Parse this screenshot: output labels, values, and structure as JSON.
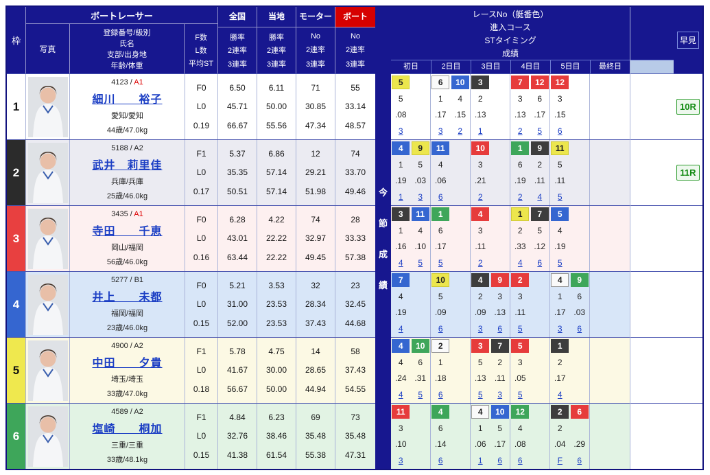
{
  "row_tints": [
    "#ffffff",
    "#ebebf2",
    "#fdf0f0",
    "#d8e6f8",
    "#fcf9e4",
    "#e2f3e4"
  ],
  "waku_styles": [
    {
      "bg": "#ffffff",
      "fg": "#111111"
    },
    {
      "bg": "#2b2b2b",
      "fg": "#ffffff"
    },
    {
      "bg": "#e84040",
      "fg": "#ffffff"
    },
    {
      "bg": "#3566d0",
      "fg": "#ffffff"
    },
    {
      "bg": "#efe84e",
      "fg": "#111111"
    },
    {
      "bg": "#3ea65a",
      "fg": "#ffffff"
    }
  ],
  "chip_styles": {
    "1": {
      "bg": "#fafafa",
      "fg": "#222222",
      "bd": "#999999"
    },
    "2": {
      "bg": "#3d3d3d",
      "fg": "#ffffff",
      "bd": "#3d3d3d"
    },
    "3": {
      "bg": "#e63c3c",
      "fg": "#ffffff",
      "bd": "#e63c3c"
    },
    "4": {
      "bg": "#3566d0",
      "fg": "#ffffff",
      "bd": "#3566d0"
    },
    "5": {
      "bg": "#ece64d",
      "fg": "#222222",
      "bd": "#d0ca38"
    },
    "6": {
      "bg": "#3ea65a",
      "fg": "#ffffff",
      "bd": "#3ea65a"
    }
  },
  "header": {
    "waku": "枠",
    "boat_racer": "ボートレーサー",
    "photo": "写真",
    "profile_lines": [
      "登録番号/級別",
      "氏名",
      "支部/出身地",
      "年齢/体重"
    ],
    "fl_lines": [
      "F数",
      "L数",
      "平均ST"
    ],
    "stat_cols": [
      {
        "label": "全国",
        "subs": [
          "勝率",
          "2連率",
          "3連率"
        ]
      },
      {
        "label": "当地",
        "subs": [
          "勝率",
          "2連率",
          "3連率"
        ]
      },
      {
        "label": "モーター",
        "subs": [
          "No",
          "2連率",
          "3連率"
        ]
      },
      {
        "label": "ボート",
        "subs": [
          "No",
          "2連率",
          "3連率"
        ]
      }
    ],
    "konsetsu": [
      "今",
      "節",
      "成",
      "績"
    ],
    "right_title": [
      "レースNo（艇番色）",
      "進入コース",
      "STタイミング",
      "成績"
    ],
    "days": [
      "初日",
      "2日目",
      "3日目",
      "4日目",
      "5日目",
      "最終日"
    ],
    "hayami": "早見"
  },
  "racers": [
    {
      "waku": "1",
      "reg": "4123",
      "grade": "A1",
      "grade_color": "#dd0000",
      "name": "細川　　裕子",
      "branch": "愛知/愛知",
      "age_weight": "44歳/47.0kg",
      "f": "F0",
      "l": "L0",
      "avg_st": "0.19",
      "zenkoku": [
        "6.50",
        "45.71",
        "66.67"
      ],
      "touchi": [
        "6.11",
        "50.00",
        "55.56"
      ],
      "motor": [
        "71",
        "30.85",
        "47.34"
      ],
      "boat": [
        "55",
        "33.14",
        "48.57"
      ],
      "hayami": "10R",
      "days": [
        [
          {
            "race": "5",
            "boat": 5,
            "course": "5",
            "st": ".08",
            "fin": "3"
          }
        ],
        [
          {
            "race": "6",
            "boat": 1,
            "course": "1",
            "st": ".17",
            "fin": "3"
          },
          {
            "race": "10",
            "boat": 4,
            "course": "4",
            "st": ".15",
            "fin": "2"
          }
        ],
        [
          {
            "race": "3",
            "boat": 2,
            "course": "2",
            "st": ".13",
            "fin": "1"
          }
        ],
        [
          {
            "race": "7",
            "boat": 3,
            "course": "3",
            "st": ".13",
            "fin": "2"
          },
          {
            "race": "12",
            "boat": 3,
            "course": "6",
            "st": ".17",
            "fin": "5"
          }
        ],
        [
          {
            "race": "12",
            "boat": 3,
            "course": "3",
            "st": ".15",
            "fin": "6"
          }
        ],
        []
      ]
    },
    {
      "waku": "2",
      "reg": "5188",
      "grade": "A2",
      "grade_color": "#222222",
      "name": "武井　莉里佳",
      "branch": "兵庫/兵庫",
      "age_weight": "25歳/46.0kg",
      "f": "F1",
      "l": "L0",
      "avg_st": "0.17",
      "zenkoku": [
        "5.37",
        "35.35",
        "50.51"
      ],
      "touchi": [
        "6.86",
        "57.14",
        "57.14"
      ],
      "motor": [
        "12",
        "29.21",
        "51.98"
      ],
      "boat": [
        "74",
        "33.70",
        "49.46"
      ],
      "hayami": "11R",
      "days": [
        [
          {
            "race": "4",
            "boat": 4,
            "course": "1",
            "st": ".19",
            "fin": "1"
          },
          {
            "race": "9",
            "boat": 5,
            "course": "5",
            "st": ".03",
            "fin": "3"
          }
        ],
        [
          {
            "race": "11",
            "boat": 4,
            "course": "4",
            "st": ".06",
            "fin": "6"
          }
        ],
        [
          {
            "race": "10",
            "boat": 3,
            "course": "3",
            "st": ".21",
            "fin": "2"
          }
        ],
        [
          {
            "race": "1",
            "boat": 6,
            "course": "6",
            "st": ".19",
            "fin": "2"
          },
          {
            "race": "9",
            "boat": 2,
            "course": "2",
            "st": ".11",
            "fin": "4"
          }
        ],
        [
          {
            "race": "11",
            "boat": 5,
            "course": "5",
            "st": ".11",
            "fin": "5"
          }
        ],
        []
      ]
    },
    {
      "waku": "3",
      "reg": "3435",
      "grade": "A1",
      "grade_color": "#dd0000",
      "name": "寺田　　千恵",
      "branch": "岡山/福岡",
      "age_weight": "56歳/46.0kg",
      "f": "F0",
      "l": "L0",
      "avg_st": "0.16",
      "zenkoku": [
        "6.28",
        "43.01",
        "63.44"
      ],
      "touchi": [
        "4.22",
        "22.22",
        "22.22"
      ],
      "motor": [
        "74",
        "32.97",
        "49.45"
      ],
      "boat": [
        "28",
        "33.33",
        "57.38"
      ],
      "hayami": "",
      "days": [
        [
          {
            "race": "3",
            "boat": 2,
            "course": "1",
            "st": ".16",
            "fin": "4"
          },
          {
            "race": "11",
            "boat": 4,
            "course": "4",
            "st": ".10",
            "fin": "5"
          }
        ],
        [
          {
            "race": "1",
            "boat": 6,
            "course": "6",
            "st": ".17",
            "fin": "5"
          }
        ],
        [
          {
            "race": "4",
            "boat": 3,
            "course": "3",
            "st": ".11",
            "fin": "2"
          }
        ],
        [
          {
            "race": "1",
            "boat": 5,
            "course": "2",
            "st": ".33",
            "fin": "4"
          },
          {
            "race": "7",
            "boat": 2,
            "course": "5",
            "st": ".12",
            "fin": "6"
          }
        ],
        [
          {
            "race": "5",
            "boat": 4,
            "course": "4",
            "st": ".19",
            "fin": "5"
          }
        ],
        []
      ]
    },
    {
      "waku": "4",
      "reg": "5277",
      "grade": "B1",
      "grade_color": "#222222",
      "name": "井上　　未都",
      "branch": "福岡/福岡",
      "age_weight": "23歳/46.0kg",
      "f": "F0",
      "l": "L0",
      "avg_st": "0.15",
      "zenkoku": [
        "5.21",
        "31.00",
        "52.00"
      ],
      "touchi": [
        "3.53",
        "23.53",
        "23.53"
      ],
      "motor": [
        "32",
        "28.34",
        "37.43"
      ],
      "boat": [
        "23",
        "32.45",
        "44.68"
      ],
      "hayami": "",
      "days": [
        [
          {
            "race": "7",
            "boat": 4,
            "course": "4",
            "st": ".19",
            "fin": "4"
          }
        ],
        [
          {
            "race": "10",
            "boat": 5,
            "course": "5",
            "st": ".09",
            "fin": "6"
          }
        ],
        [
          {
            "race": "4",
            "boat": 2,
            "course": "2",
            "st": ".09",
            "fin": "3"
          },
          {
            "race": "9",
            "boat": 3,
            "course": "3",
            "st": ".13",
            "fin": "6"
          }
        ],
        [
          {
            "race": "2",
            "boat": 3,
            "course": "3",
            "st": ".11",
            "fin": "5"
          }
        ],
        [
          {
            "race": "4",
            "boat": 1,
            "course": "1",
            "st": ".17",
            "fin": "3"
          },
          {
            "race": "9",
            "boat": 6,
            "course": "6",
            "st": ".03",
            "fin": "6"
          }
        ],
        []
      ]
    },
    {
      "waku": "5",
      "reg": "4900",
      "grade": "A2",
      "grade_color": "#222222",
      "name": "中田　　夕貴",
      "branch": "埼玉/埼玉",
      "age_weight": "33歳/47.0kg",
      "f": "F1",
      "l": "L0",
      "avg_st": "0.18",
      "zenkoku": [
        "5.78",
        "41.67",
        "56.67"
      ],
      "touchi": [
        "4.75",
        "30.00",
        "50.00"
      ],
      "motor": [
        "14",
        "28.65",
        "44.94"
      ],
      "boat": [
        "58",
        "37.43",
        "54.55"
      ],
      "hayami": "",
      "days": [
        [
          {
            "race": "4",
            "boat": 4,
            "course": "4",
            "st": ".24",
            "fin": "4"
          },
          {
            "race": "10",
            "boat": 6,
            "course": "6",
            "st": ".31",
            "fin": "5"
          }
        ],
        [
          {
            "race": "2",
            "boat": 1,
            "course": "1",
            "st": ".18",
            "fin": "6"
          }
        ],
        [
          {
            "race": "3",
            "boat": 3,
            "course": "5",
            "st": ".13",
            "fin": "5"
          },
          {
            "race": "7",
            "boat": 2,
            "course": "2",
            "st": ".11",
            "fin": "3"
          }
        ],
        [
          {
            "race": "5",
            "boat": 3,
            "course": "3",
            "st": ".05",
            "fin": "5"
          }
        ],
        [
          {
            "race": "1",
            "boat": 2,
            "course": "2",
            "st": ".17",
            "fin": "4"
          }
        ],
        []
      ]
    },
    {
      "waku": "6",
      "reg": "4589",
      "grade": "A2",
      "grade_color": "#222222",
      "name": "塩崎　　桐加",
      "branch": "三重/三重",
      "age_weight": "33歳/48.1kg",
      "f": "F1",
      "l": "L0",
      "avg_st": "0.15",
      "zenkoku": [
        "4.84",
        "32.76",
        "41.38"
      ],
      "touchi": [
        "6.23",
        "38.46",
        "61.54"
      ],
      "motor": [
        "69",
        "35.48",
        "55.38"
      ],
      "boat": [
        "73",
        "35.48",
        "47.31"
      ],
      "hayami": "",
      "days": [
        [
          {
            "race": "11",
            "boat": 3,
            "course": "3",
            "st": ".10",
            "fin": "3"
          }
        ],
        [
          {
            "race": "4",
            "boat": 6,
            "course": "6",
            "st": ".14",
            "fin": "6"
          }
        ],
        [
          {
            "race": "4",
            "boat": 1,
            "course": "1",
            "st": ".06",
            "fin": "1"
          },
          {
            "race": "10",
            "boat": 4,
            "course": "5",
            "st": ".17",
            "fin": "6"
          }
        ],
        [
          {
            "race": "12",
            "boat": 6,
            "course": "4",
            "st": ".08",
            "fin": "6"
          }
        ],
        [
          {
            "race": "2",
            "boat": 2,
            "course": "2",
            "st": ".04",
            "fin": "F"
          },
          {
            "race": "6",
            "boat": 3,
            "course": "",
            "st": ".29",
            "fin": "6"
          }
        ],
        []
      ]
    }
  ]
}
